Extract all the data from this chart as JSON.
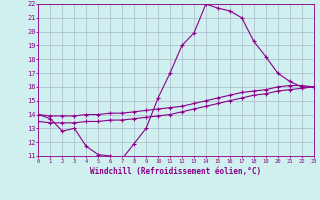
{
  "xlabel": "Windchill (Refroidissement éolien,°C)",
  "ylim": [
    11,
    22
  ],
  "xlim": [
    0,
    23
  ],
  "yticks": [
    11,
    12,
    13,
    14,
    15,
    16,
    17,
    18,
    19,
    20,
    21,
    22
  ],
  "xticks": [
    0,
    1,
    2,
    3,
    4,
    5,
    6,
    7,
    8,
    9,
    10,
    11,
    12,
    13,
    14,
    15,
    16,
    17,
    18,
    19,
    20,
    21,
    22,
    23
  ],
  "bg_color": "#d0f0f0",
  "grid_color": "#aab8cc",
  "line_color": "#880088",
  "line1_x": [
    0,
    1,
    2,
    3,
    4,
    5,
    6,
    7,
    8,
    9,
    10,
    11,
    12,
    13,
    14,
    15,
    16,
    17,
    18,
    19,
    20,
    21,
    22,
    23
  ],
  "line1_y": [
    14.0,
    13.7,
    12.8,
    13.0,
    11.7,
    11.1,
    11.0,
    10.8,
    11.9,
    13.0,
    15.2,
    17.0,
    19.0,
    19.9,
    22.0,
    21.7,
    21.5,
    21.0,
    19.3,
    18.2,
    17.0,
    16.4,
    16.0,
    16.0
  ],
  "line2_x": [
    0,
    1,
    2,
    3,
    4,
    5,
    6,
    7,
    8,
    9,
    10,
    11,
    12,
    13,
    14,
    15,
    16,
    17,
    18,
    19,
    20,
    21,
    22,
    23
  ],
  "line2_y": [
    13.5,
    13.4,
    13.4,
    13.4,
    13.5,
    13.5,
    13.6,
    13.6,
    13.7,
    13.8,
    13.9,
    14.0,
    14.2,
    14.4,
    14.6,
    14.8,
    15.0,
    15.2,
    15.4,
    15.5,
    15.7,
    15.8,
    15.9,
    16.0
  ],
  "line3_x": [
    0,
    1,
    2,
    3,
    4,
    5,
    6,
    7,
    8,
    9,
    10,
    11,
    12,
    13,
    14,
    15,
    16,
    17,
    18,
    19,
    20,
    21,
    22,
    23
  ],
  "line3_y": [
    14.0,
    13.9,
    13.9,
    13.9,
    14.0,
    14.0,
    14.1,
    14.1,
    14.2,
    14.3,
    14.4,
    14.5,
    14.6,
    14.8,
    15.0,
    15.2,
    15.4,
    15.6,
    15.7,
    15.8,
    16.0,
    16.1,
    16.1,
    16.0
  ]
}
